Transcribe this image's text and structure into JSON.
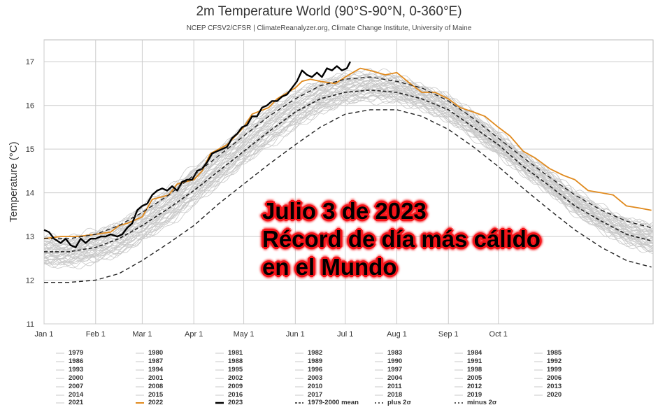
{
  "chart_data": {
    "type": "line",
    "title": "2m Temperature World (90°S-90°N, 0-360°E)",
    "subtitle": "NCEP CFSV2/CFSR | ClimateReanalyzer.org, Climate Change Institute, University of Maine",
    "ylabel": "Temperature (°C)",
    "xlabel": "",
    "ylim": [
      11,
      17.5
    ],
    "yticks": [
      11,
      12,
      13,
      14,
      15,
      16,
      17
    ],
    "xlim_day": [
      0,
      366
    ],
    "xticks": [
      {
        "label": "Jan 1",
        "day": 0
      },
      {
        "label": "Feb 1",
        "day": 31
      },
      {
        "label": "Mar 1",
        "day": 59
      },
      {
        "label": "Apr 1",
        "day": 90
      },
      {
        "label": "May 1",
        "day": 120
      },
      {
        "label": "Jun 1",
        "day": 151
      },
      {
        "label": "Jul 1",
        "day": 181
      },
      {
        "label": "Aug 1",
        "day": 212
      },
      {
        "label": "Sep 1",
        "day": 243
      },
      {
        "label": "Oct 1",
        "day": 273
      }
    ],
    "grid": true,
    "legend_position": "bottom",
    "colors": {
      "historical": "#c8c8c8",
      "y2022": "#e08a1e",
      "y2023": "#000000",
      "mean": "#222222"
    },
    "historical_years": [
      "1979",
      "1980",
      "1981",
      "1982",
      "1983",
      "1984",
      "1985",
      "1986",
      "1987",
      "1988",
      "1989",
      "1990",
      "1991",
      "1992",
      "1993",
      "1994",
      "1995",
      "1996",
      "1997",
      "1998",
      "1999",
      "2000",
      "2001",
      "2002",
      "2003",
      "2004",
      "2005",
      "2006",
      "2007",
      "2008",
      "2009",
      "2010",
      "2011",
      "2012",
      "2013",
      "2014",
      "2015",
      "2016",
      "2017",
      "2018",
      "2019",
      "2020",
      "2021"
    ],
    "historical_envelope": {
      "x": [
        0,
        15,
        31,
        45,
        59,
        75,
        90,
        105,
        120,
        135,
        151,
        166,
        181,
        196,
        212,
        227,
        243,
        258,
        273,
        288,
        304,
        319,
        335,
        350,
        365
      ],
      "low": [
        12.35,
        12.35,
        12.45,
        12.6,
        12.9,
        13.3,
        13.75,
        14.2,
        14.65,
        15.1,
        15.5,
        15.85,
        16.05,
        16.15,
        16.1,
        15.95,
        15.65,
        15.3,
        14.9,
        14.45,
        14.0,
        13.55,
        13.15,
        12.85,
        12.65
      ],
      "high": [
        12.95,
        12.95,
        13.1,
        13.3,
        13.65,
        14.1,
        14.55,
        15.0,
        15.5,
        15.95,
        16.3,
        16.55,
        16.7,
        16.75,
        16.65,
        16.45,
        16.2,
        15.8,
        15.35,
        14.9,
        14.45,
        14.0,
        13.65,
        13.4,
        13.25
      ]
    },
    "series": [
      {
        "name": "2022",
        "x": [
          0,
          10,
          20,
          31,
          40,
          45,
          50,
          59,
          65,
          75,
          80,
          90,
          95,
          100,
          105,
          110,
          120,
          125,
          135,
          140,
          151,
          155,
          160,
          166,
          175,
          181,
          190,
          196,
          205,
          212,
          220,
          227,
          235,
          243,
          250,
          258,
          265,
          273,
          280,
          288,
          295,
          304,
          312,
          319,
          327,
          335,
          342,
          350,
          358,
          365
        ],
        "y": [
          12.95,
          13.0,
          13.0,
          13.05,
          13.1,
          13.25,
          13.3,
          13.45,
          13.85,
          13.95,
          14.2,
          14.3,
          14.5,
          14.9,
          15.0,
          15.1,
          15.5,
          15.8,
          15.95,
          16.15,
          16.4,
          16.55,
          16.6,
          16.55,
          16.5,
          16.65,
          16.85,
          16.8,
          16.7,
          16.75,
          16.5,
          16.3,
          16.3,
          16.15,
          15.95,
          15.85,
          15.75,
          15.5,
          15.3,
          14.95,
          14.8,
          14.55,
          14.4,
          14.3,
          14.05,
          14.0,
          13.95,
          13.7,
          13.65,
          13.6
        ]
      },
      {
        "name": "2023",
        "x": [
          0,
          3,
          6,
          10,
          13,
          16,
          19,
          22,
          25,
          28,
          31,
          34,
          37,
          40,
          44,
          47,
          50,
          53,
          56,
          59,
          62,
          65,
          68,
          71,
          74,
          77,
          80,
          83,
          86,
          89,
          92,
          95,
          98,
          101,
          104,
          107,
          110,
          113,
          116,
          119,
          122,
          125,
          128,
          131,
          134,
          137,
          140,
          143,
          146,
          149,
          152,
          155,
          158,
          161,
          164,
          167,
          170,
          173,
          176,
          179,
          182,
          184
        ],
        "y": [
          13.15,
          13.1,
          12.95,
          12.85,
          12.95,
          12.8,
          12.75,
          12.95,
          12.85,
          12.95,
          12.95,
          13.0,
          13.0,
          13.05,
          13.0,
          13.05,
          13.2,
          13.3,
          13.6,
          13.7,
          13.75,
          13.95,
          14.05,
          14.1,
          14.05,
          14.15,
          14.05,
          14.25,
          14.3,
          14.3,
          14.5,
          14.55,
          14.7,
          14.9,
          14.95,
          15.0,
          15.05,
          15.25,
          15.35,
          15.5,
          15.55,
          15.75,
          15.75,
          15.95,
          16.0,
          16.1,
          16.1,
          16.2,
          16.25,
          16.4,
          16.55,
          16.8,
          16.7,
          16.65,
          16.75,
          16.65,
          16.85,
          16.8,
          16.9,
          16.8,
          16.85,
          17.0
        ]
      },
      {
        "name": "1979-2000 mean",
        "x": [
          0,
          15,
          31,
          45,
          59,
          75,
          90,
          105,
          120,
          135,
          151,
          166,
          181,
          196,
          212,
          227,
          243,
          258,
          273,
          288,
          304,
          319,
          335,
          350,
          365
        ],
        "y": [
          12.65,
          12.65,
          12.75,
          12.95,
          13.25,
          13.65,
          14.05,
          14.5,
          14.95,
          15.4,
          15.85,
          16.15,
          16.3,
          16.35,
          16.3,
          16.15,
          15.9,
          15.5,
          15.1,
          14.6,
          14.15,
          13.7,
          13.35,
          13.05,
          12.9
        ]
      },
      {
        "name": "plus 2σ",
        "x": [
          0,
          15,
          31,
          45,
          59,
          75,
          90,
          105,
          120,
          135,
          151,
          166,
          181,
          196,
          212,
          227,
          243,
          258,
          273,
          288,
          304,
          319,
          335,
          350,
          365
        ],
        "y": [
          12.95,
          12.95,
          13.05,
          13.25,
          13.55,
          13.95,
          14.4,
          14.85,
          15.3,
          15.75,
          16.15,
          16.45,
          16.6,
          16.65,
          16.55,
          16.4,
          16.1,
          15.7,
          15.25,
          14.8,
          14.35,
          13.95,
          13.6,
          13.35,
          13.2
        ]
      },
      {
        "name": "minus 2σ",
        "x": [
          0,
          15,
          31,
          45,
          59,
          75,
          90,
          105,
          120,
          135,
          151,
          166,
          181,
          196,
          212,
          227,
          243,
          258,
          273,
          288,
          304,
          319,
          335,
          350,
          365
        ],
        "y": [
          11.95,
          11.95,
          12.0,
          12.15,
          12.45,
          12.85,
          13.25,
          13.75,
          14.2,
          14.65,
          15.1,
          15.5,
          15.8,
          15.9,
          15.9,
          15.75,
          15.45,
          15.05,
          14.6,
          14.1,
          13.6,
          13.15,
          12.75,
          12.45,
          12.3
        ]
      }
    ]
  },
  "annotation": {
    "lines": [
      "Julio 3 de 2023",
      "Récord de día más cálido",
      "en el Mundo"
    ],
    "outline_color": "#f5151a"
  },
  "legend": {
    "entries": [
      {
        "label": "1979",
        "style": "hist"
      },
      {
        "label": "1980",
        "style": "hist"
      },
      {
        "label": "1981",
        "style": "hist"
      },
      {
        "label": "1982",
        "style": "hist"
      },
      {
        "label": "1983",
        "style": "hist"
      },
      {
        "label": "1984",
        "style": "hist"
      },
      {
        "label": "1985",
        "style": "hist"
      },
      {
        "label": "1986",
        "style": "hist"
      },
      {
        "label": "1987",
        "style": "hist"
      },
      {
        "label": "1988",
        "style": "hist"
      },
      {
        "label": "1989",
        "style": "hist"
      },
      {
        "label": "1990",
        "style": "hist"
      },
      {
        "label": "1991",
        "style": "hist"
      },
      {
        "label": "1992",
        "style": "hist"
      },
      {
        "label": "1993",
        "style": "hist"
      },
      {
        "label": "1994",
        "style": "hist"
      },
      {
        "label": "1995",
        "style": "hist"
      },
      {
        "label": "1996",
        "style": "hist"
      },
      {
        "label": "1997",
        "style": "hist"
      },
      {
        "label": "1998",
        "style": "hist"
      },
      {
        "label": "1999",
        "style": "hist"
      },
      {
        "label": "2000",
        "style": "hist"
      },
      {
        "label": "2001",
        "style": "hist"
      },
      {
        "label": "2002",
        "style": "hist"
      },
      {
        "label": "2003",
        "style": "hist"
      },
      {
        "label": "2004",
        "style": "hist"
      },
      {
        "label": "2005",
        "style": "hist"
      },
      {
        "label": "2006",
        "style": "hist"
      },
      {
        "label": "2007",
        "style": "hist"
      },
      {
        "label": "2008",
        "style": "hist"
      },
      {
        "label": "2009",
        "style": "hist"
      },
      {
        "label": "2010",
        "style": "hist"
      },
      {
        "label": "2011",
        "style": "hist"
      },
      {
        "label": "2012",
        "style": "hist"
      },
      {
        "label": "2013",
        "style": "hist"
      },
      {
        "label": "2014",
        "style": "hist"
      },
      {
        "label": "2015",
        "style": "hist"
      },
      {
        "label": "2016",
        "style": "hist"
      },
      {
        "label": "2017",
        "style": "hist"
      },
      {
        "label": "2018",
        "style": "hist"
      },
      {
        "label": "2019",
        "style": "hist"
      },
      {
        "label": "2020",
        "style": "hist"
      },
      {
        "label": "2021",
        "style": "hist"
      },
      {
        "label": "2022",
        "style": "y2022"
      },
      {
        "label": "2023",
        "style": "y2023"
      },
      {
        "label": "1979-2000 mean",
        "style": "mean"
      },
      {
        "label": "plus 2σ",
        "style": "dash"
      },
      {
        "label": "minus 2σ",
        "style": "dash"
      }
    ]
  }
}
